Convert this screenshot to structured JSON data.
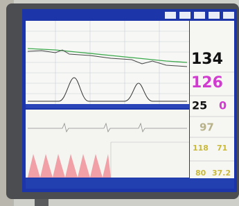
{
  "readings": {
    "fhr1": "134",
    "fhr2": "126",
    "toco": "25",
    "toco_offset": "0",
    "spo2": "97",
    "nibp_sys": "118",
    "nibp_dia": "71",
    "pulse": "80",
    "temp": "37.2"
  }
}
